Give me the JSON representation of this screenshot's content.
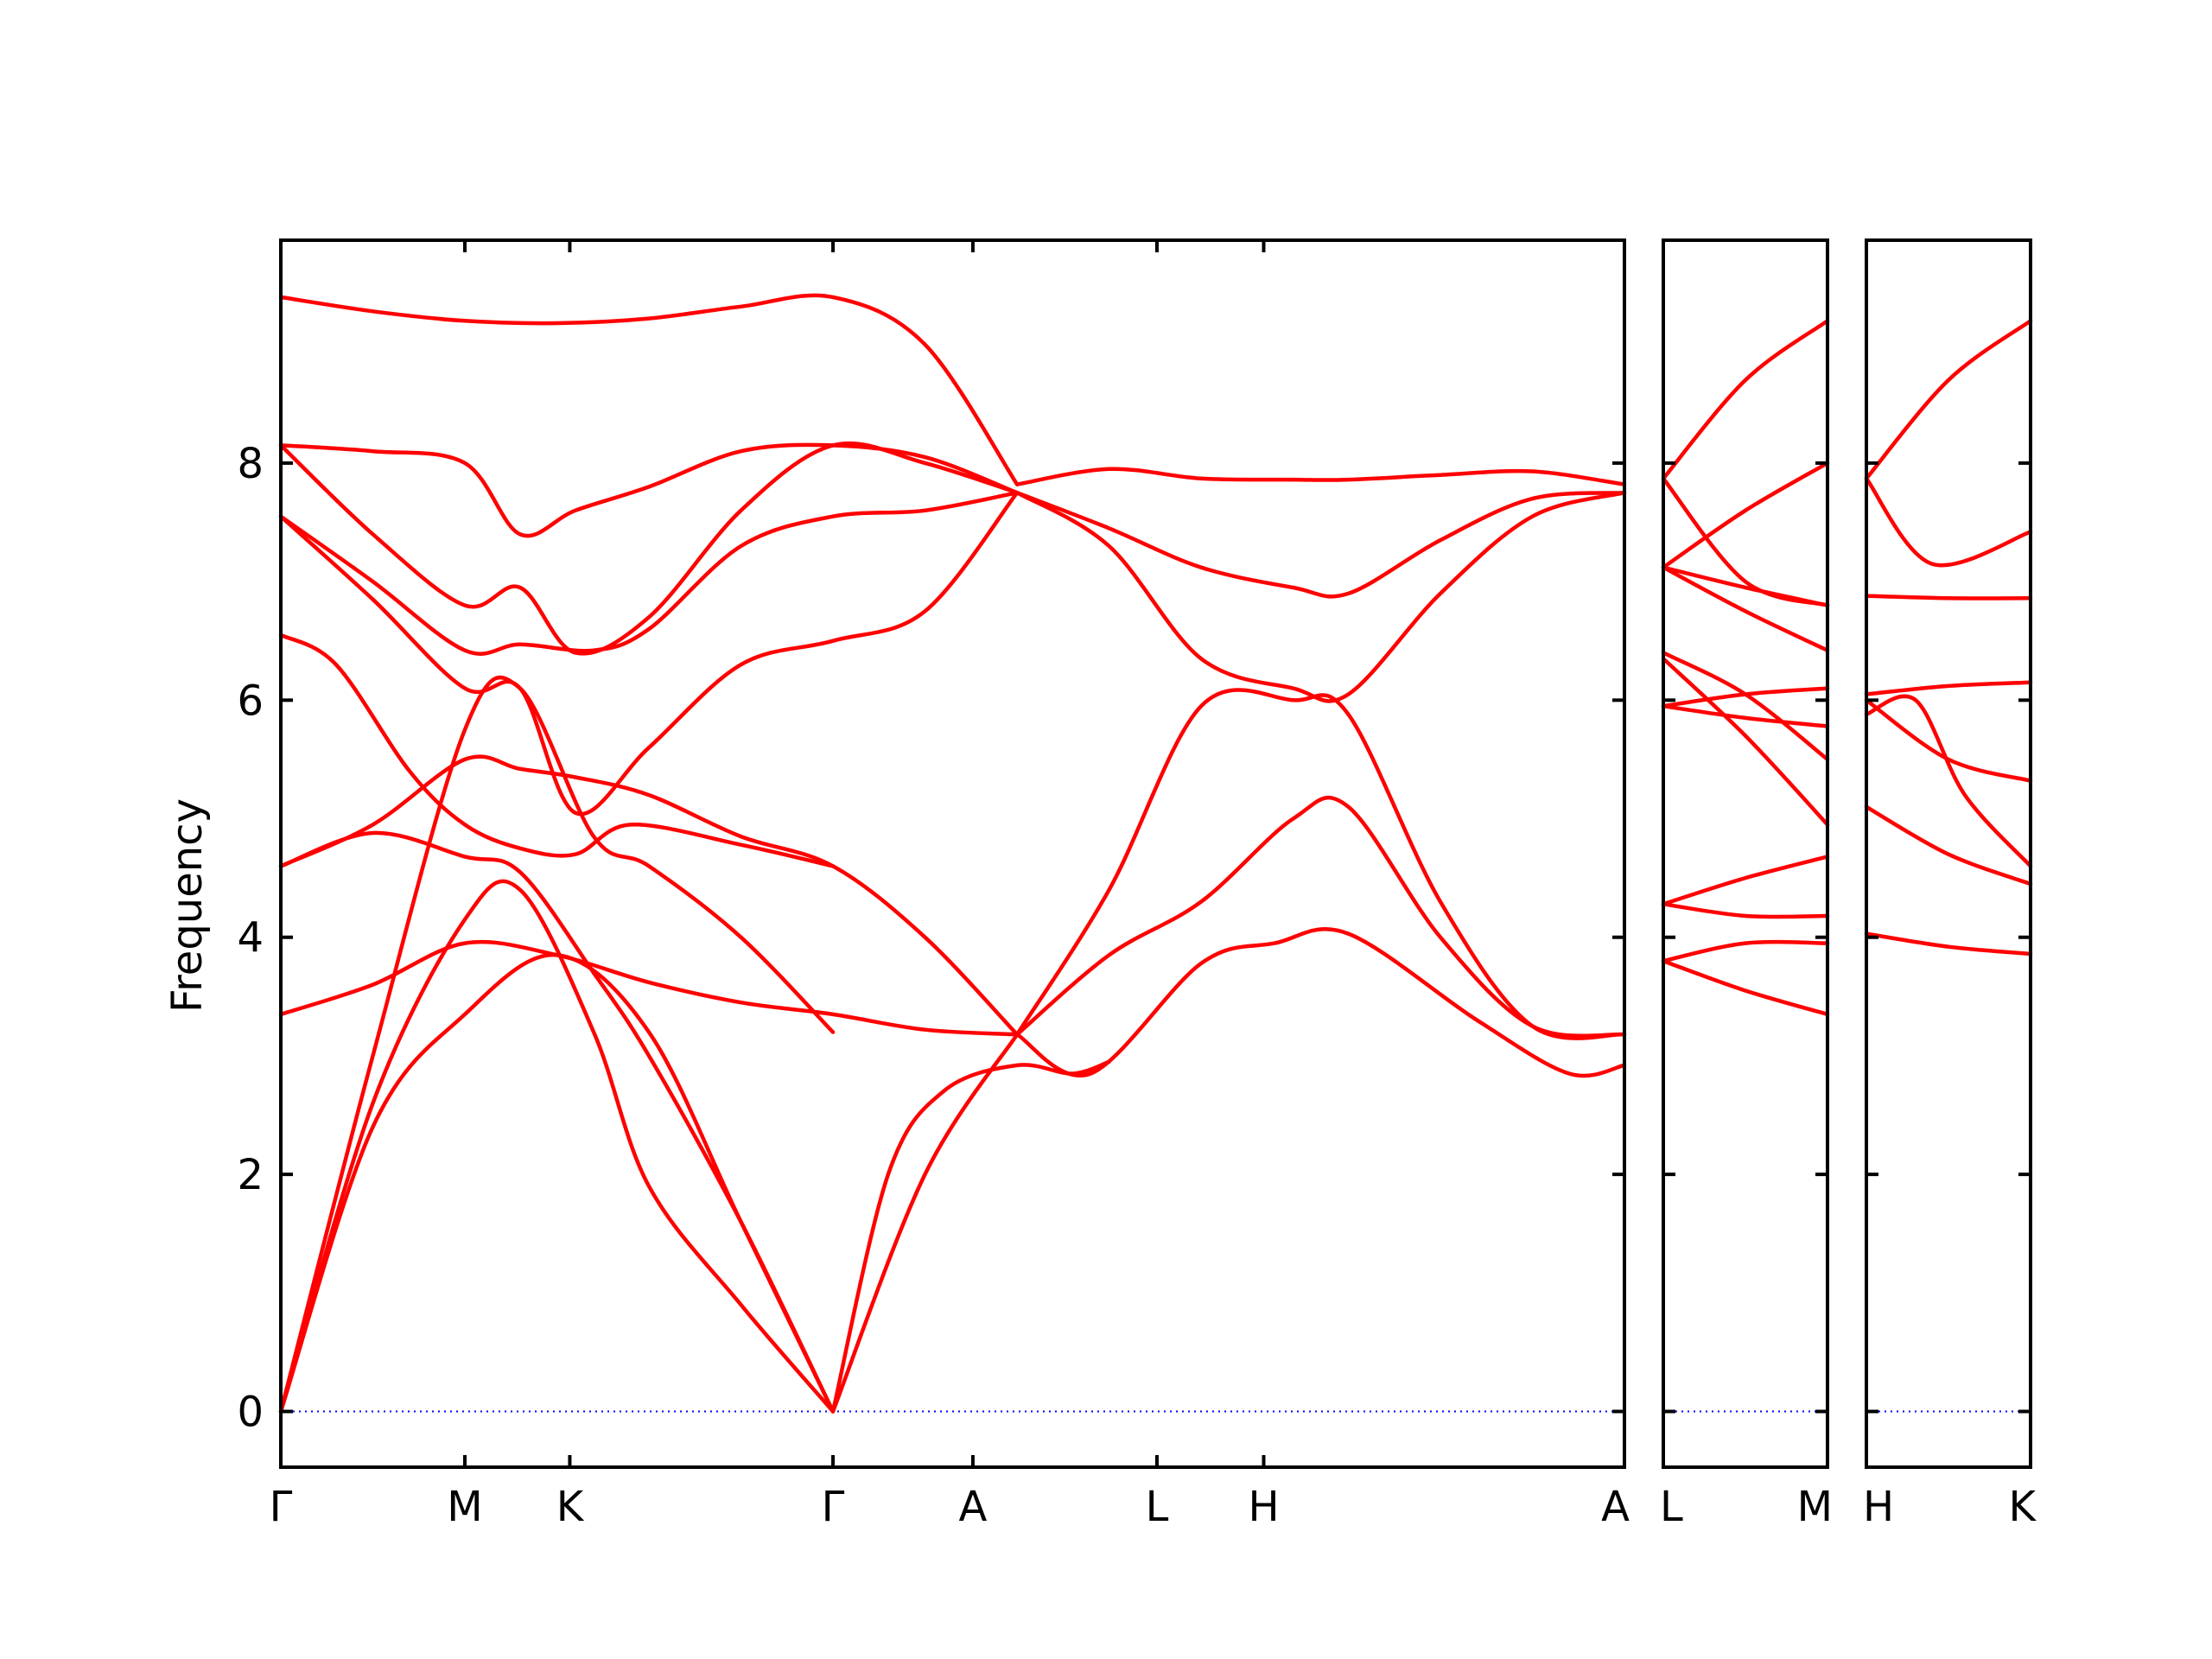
{
  "chart_data": {
    "type": "line",
    "ylabel": "Frequency",
    "ylim": [
      -0.47,
      9.88
    ],
    "yticks": [
      0,
      2,
      4,
      6,
      8
    ],
    "line_color": "#ff0000",
    "zero_line_color": "#0000ff",
    "panels": [
      {
        "name": "panel-1",
        "x_labels": [
          "Γ",
          "M",
          "K",
          "Γ",
          "A",
          "L",
          "H",
          "A"
        ],
        "bands": [
          [
            [
              0,
              0
            ],
            [
              0.5,
              3.0
            ],
            [
              1,
              5.75
            ],
            [
              1.3,
              6.1
            ],
            [
              1.7,
              4.85
            ],
            [
              2,
              4.6
            ],
            [
              2.5,
              4.0
            ],
            [
              3,
              3.2
            ]
          ],
          [
            [
              0,
              0
            ],
            [
              0.5,
              2.6
            ],
            [
              1,
              4.15
            ],
            [
              1.3,
              4.4
            ],
            [
              1.7,
              3.2
            ],
            [
              2,
              1.9
            ],
            [
              2.5,
              0.9
            ],
            [
              3,
              0
            ]
          ],
          [
            [
              0,
              0
            ],
            [
              0.5,
              2.4
            ],
            [
              1,
              3.35
            ],
            [
              1.5,
              3.85
            ],
            [
              2,
              3.2
            ],
            [
              2.5,
              1.6
            ],
            [
              3,
              0
            ]
          ],
          [
            [
              0,
              3.35
            ],
            [
              0.5,
              3.6
            ],
            [
              1,
              3.95
            ],
            [
              1.5,
              3.85
            ],
            [
              2,
              3.62
            ],
            [
              2.5,
              3.45
            ],
            [
              3,
              3.35
            ],
            [
              3.5,
              3.22
            ],
            [
              4,
              3.18
            ]
          ],
          [
            [
              0,
              4.6
            ],
            [
              0.5,
              4.88
            ],
            [
              1,
              4.68
            ],
            [
              1.3,
              4.55
            ],
            [
              1.7,
              3.7
            ],
            [
              2,
              3.0
            ],
            [
              2.5,
              1.6
            ],
            [
              3,
              0
            ]
          ],
          [
            [
              0,
              4.6
            ],
            [
              0.5,
              4.95
            ],
            [
              1,
              5.5
            ],
            [
              1.3,
              5.42
            ],
            [
              1.6,
              5.35
            ],
            [
              2,
              5.2
            ],
            [
              2.5,
              4.85
            ],
            [
              3,
              4.6
            ],
            [
              3.5,
              4.0
            ],
            [
              4,
              3.18
            ]
          ],
          [
            [
              0,
              6.55
            ],
            [
              0.3,
              6.3
            ],
            [
              0.7,
              5.4
            ],
            [
              1,
              4.95
            ],
            [
              1.3,
              4.75
            ],
            [
              1.6,
              4.7
            ],
            [
              1.9,
              4.95
            ],
            [
              2.5,
              4.78
            ],
            [
              3,
              4.6
            ]
          ],
          [
            [
              0,
              7.55
            ],
            [
              0.5,
              6.85
            ],
            [
              1,
              6.1
            ],
            [
              1.3,
              6.1
            ],
            [
              1.6,
              5.05
            ],
            [
              2,
              5.6
            ],
            [
              2.5,
              6.3
            ],
            [
              3,
              6.5
            ],
            [
              3.5,
              6.75
            ],
            [
              4,
              7.75
            ]
          ],
          [
            [
              0,
              7.55
            ],
            [
              0.5,
              7.0
            ],
            [
              1,
              6.42
            ],
            [
              1.3,
              6.47
            ],
            [
              1.7,
              6.42
            ],
            [
              2,
              6.6
            ],
            [
              2.5,
              7.3
            ],
            [
              3,
              7.55
            ],
            [
              3.5,
              7.6
            ],
            [
              4,
              7.75
            ]
          ],
          [
            [
              0,
              8.15
            ],
            [
              0.5,
              7.4
            ],
            [
              1,
              6.8
            ],
            [
              1.3,
              6.95
            ],
            [
              1.6,
              6.4
            ],
            [
              2,
              6.7
            ],
            [
              2.5,
              7.6
            ],
            [
              3,
              8.15
            ],
            [
              3.5,
              8.0
            ],
            [
              4,
              7.75
            ]
          ],
          [
            [
              0,
              8.15
            ],
            [
              0.5,
              8.1
            ],
            [
              1,
              8.0
            ],
            [
              1.3,
              7.4
            ],
            [
              1.6,
              7.6
            ],
            [
              2,
              7.8
            ],
            [
              2.5,
              8.1
            ],
            [
              3,
              8.15
            ],
            [
              3.5,
              8.05
            ],
            [
              4,
              7.75
            ]
          ],
          [
            [
              0,
              9.4
            ],
            [
              0.5,
              9.28
            ],
            [
              1,
              9.2
            ],
            [
              1.5,
              9.18
            ],
            [
              2,
              9.22
            ],
            [
              2.5,
              9.32
            ],
            [
              3,
              9.4
            ],
            [
              3.5,
              9.0
            ],
            [
              4,
              7.82
            ]
          ],
          [
            [
              4,
              3.18
            ],
            [
              4.5,
              4.4
            ],
            [
              5,
              5.95
            ],
            [
              5.5,
              6.0
            ],
            [
              5.8,
              5.88
            ],
            [
              6.3,
              4.3
            ],
            [
              6.8,
              3.25
            ],
            [
              7.3,
              3.18
            ]
          ],
          [
            [
              4,
              3.18
            ],
            [
              4.5,
              3.85
            ],
            [
              5,
              4.3
            ],
            [
              5.5,
              5.0
            ],
            [
              5.8,
              5.1
            ],
            [
              6.3,
              4.0
            ],
            [
              6.8,
              3.25
            ],
            [
              7.3,
              3.18
            ]
          ],
          [
            [
              4,
              3.18
            ],
            [
              4.4,
              2.85
            ],
            [
              5,
              3.78
            ],
            [
              5.4,
              3.95
            ],
            [
              5.8,
              4.03
            ],
            [
              6.5,
              3.3
            ],
            [
              7,
              2.85
            ],
            [
              7.3,
              2.92
            ]
          ],
          [
            [
              3,
              0
            ],
            [
              3.3,
              2.0
            ],
            [
              3.6,
              2.7
            ],
            [
              4,
              2.92
            ],
            [
              4.3,
              2.85
            ],
            [
              4.5,
              2.95
            ]
          ],
          [
            [
              3,
              0
            ],
            [
              3.5,
              2.0
            ],
            [
              4,
              3.18
            ]
          ],
          [
            [
              4,
              7.75
            ],
            [
              4.5,
              7.3
            ],
            [
              5,
              6.35
            ],
            [
              5.5,
              6.1
            ],
            [
              5.8,
              6.05
            ],
            [
              6.3,
              6.9
            ],
            [
              6.8,
              7.55
            ],
            [
              7.3,
              7.75
            ]
          ],
          [
            [
              4,
              7.75
            ],
            [
              4.5,
              7.45
            ],
            [
              5,
              7.12
            ],
            [
              5.5,
              6.95
            ],
            [
              5.8,
              6.9
            ],
            [
              6.3,
              7.35
            ],
            [
              6.8,
              7.7
            ],
            [
              7.3,
              7.75
            ]
          ],
          [
            [
              4,
              7.82
            ],
            [
              4.5,
              7.95
            ],
            [
              5,
              7.87
            ],
            [
              5.5,
              7.86
            ],
            [
              5.8,
              7.86
            ],
            [
              6.3,
              7.9
            ],
            [
              6.8,
              7.93
            ],
            [
              7.3,
              7.82
            ]
          ]
        ]
      },
      {
        "name": "panel-2",
        "x_labels": [
          "L",
          "M"
        ],
        "bands": [
          [
            [
              0,
              3.8
            ],
            [
              0.5,
              3.55
            ],
            [
              1,
              3.35
            ]
          ],
          [
            [
              0,
              3.8
            ],
            [
              0.5,
              3.95
            ],
            [
              1,
              3.95
            ]
          ],
          [
            [
              0,
              4.28
            ],
            [
              0.5,
              4.18
            ],
            [
              1,
              4.18
            ]
          ],
          [
            [
              0,
              4.28
            ],
            [
              0.5,
              4.5
            ],
            [
              1,
              4.68
            ]
          ],
          [
            [
              0,
              6.35
            ],
            [
              0.5,
              5.7
            ],
            [
              1,
              4.95
            ]
          ],
          [
            [
              0,
              6.4
            ],
            [
              0.5,
              6.05
            ],
            [
              1,
              5.5
            ]
          ],
          [
            [
              0,
              5.95
            ],
            [
              0.5,
              5.85
            ],
            [
              1,
              5.78
            ]
          ],
          [
            [
              0,
              5.95
            ],
            [
              0.5,
              6.05
            ],
            [
              1,
              6.1
            ]
          ],
          [
            [
              0,
              7.12
            ],
            [
              0.5,
              6.75
            ],
            [
              1,
              6.42
            ]
          ],
          [
            [
              0,
              7.12
            ],
            [
              0.5,
              6.95
            ],
            [
              1,
              6.8
            ]
          ],
          [
            [
              0,
              7.87
            ],
            [
              0.5,
              7.0
            ],
            [
              1,
              6.8
            ]
          ],
          [
            [
              0,
              7.12
            ],
            [
              0.5,
              7.6
            ],
            [
              1,
              8.0
            ]
          ],
          [
            [
              0,
              7.87
            ],
            [
              0.5,
              8.7
            ],
            [
              1,
              9.2
            ]
          ]
        ]
      },
      {
        "name": "panel-3",
        "x_labels": [
          "H",
          "K"
        ],
        "bands": [
          [
            [
              0,
              4.03
            ],
            [
              0.5,
              3.92
            ],
            [
              1,
              3.86
            ]
          ],
          [
            [
              0,
              5.1
            ],
            [
              0.5,
              4.7
            ],
            [
              1,
              4.45
            ]
          ],
          [
            [
              0,
              5.88
            ],
            [
              0.3,
              6.0
            ],
            [
              0.6,
              5.2
            ],
            [
              1,
              4.6
            ]
          ],
          [
            [
              0,
              6.0
            ],
            [
              0.5,
              5.5
            ],
            [
              1,
              5.32
            ]
          ],
          [
            [
              0,
              6.05
            ],
            [
              0.5,
              6.12
            ],
            [
              1,
              6.15
            ]
          ],
          [
            [
              0,
              6.88
            ],
            [
              0.5,
              6.86
            ],
            [
              1,
              6.86
            ]
          ],
          [
            [
              0,
              7.87
            ],
            [
              0.4,
              7.15
            ],
            [
              1,
              7.42
            ]
          ],
          [
            [
              0,
              7.87
            ],
            [
              0.5,
              8.7
            ],
            [
              1,
              9.2
            ]
          ]
        ]
      }
    ]
  }
}
